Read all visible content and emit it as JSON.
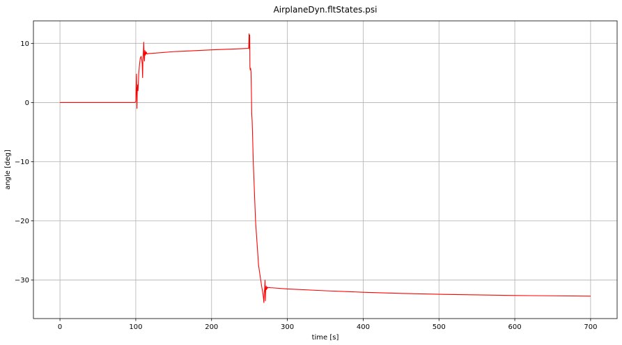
{
  "chart_data": {
    "type": "line",
    "title": "AirplaneDyn.fltStates.psi",
    "xlabel": "time [s]",
    "ylabel": "angle [deg]",
    "xlim": [
      -35,
      735
    ],
    "ylim": [
      -36.5,
      13.8
    ],
    "xticks": [
      0,
      100,
      200,
      300,
      400,
      500,
      600,
      700
    ],
    "yticks": [
      10,
      0,
      -10,
      -20,
      -30
    ],
    "xtick_labels": [
      "0",
      "100",
      "200",
      "300",
      "400",
      "500",
      "600",
      "700"
    ],
    "ytick_labels": [
      "10",
      "0",
      "−10",
      "−20",
      "−30"
    ],
    "grid": true,
    "legend": "none",
    "series": [
      {
        "color": "#ff0000",
        "x": [
          0,
          99.0,
          100.0,
          100.5,
          101.0,
          101.5,
          102.0,
          102.5,
          103.0,
          103.5,
          104.0,
          105.0,
          106.0,
          107.0,
          108.0,
          108.5,
          109.0,
          109.5,
          110.0,
          110.5,
          111.0,
          111.5,
          112.0,
          112.5,
          113.0,
          113.5,
          114.0,
          114.5,
          115.0,
          116.0,
          118.0,
          120.0,
          150.0,
          200.0,
          230.0,
          248.0,
          249.0,
          249.5,
          250.0,
          250.3,
          250.6,
          251.0,
          251.5,
          252.0,
          252.5,
          253.0,
          253.5,
          254.0,
          255.0,
          258.0,
          262.0,
          266.0,
          268.0,
          269.0,
          269.5,
          270.0,
          270.5,
          271.0,
          271.5,
          272.0,
          272.5,
          273.0,
          273.5,
          274.0,
          275.0,
          276.0,
          278.0,
          280.0,
          300.0,
          350.0,
          400.0,
          450.0,
          500.0,
          550.0,
          600.0,
          650.0,
          700.0
        ],
        "y": [
          0,
          0.0,
          0.2,
          2.5,
          4.8,
          -1.0,
          2.0,
          3.0,
          2.0,
          3.5,
          5.0,
          6.5,
          7.5,
          7.8,
          7.2,
          6.5,
          4.2,
          7.5,
          8.5,
          10.2,
          7.5,
          7.0,
          8.8,
          8.0,
          8.6,
          8.2,
          8.5,
          8.3,
          8.2,
          8.25,
          8.3,
          8.3,
          8.6,
          8.9,
          9.05,
          9.15,
          9.2,
          11.6,
          9.0,
          11.4,
          6.0,
          5.5,
          5.8,
          5.2,
          2.0,
          -2.0,
          -3.0,
          -5.0,
          -10.0,
          -20.0,
          -27.5,
          -31.0,
          -32.5,
          -33.8,
          -32.0,
          -31.5,
          -30.0,
          -33.5,
          -31.5,
          -31.0,
          -31.6,
          -31.2,
          -31.4,
          -31.2,
          -31.3,
          -31.25,
          -31.3,
          -31.3,
          -31.5,
          -31.8,
          -32.05,
          -32.25,
          -32.4,
          -32.5,
          -32.6,
          -32.65,
          -32.72
        ]
      }
    ]
  }
}
